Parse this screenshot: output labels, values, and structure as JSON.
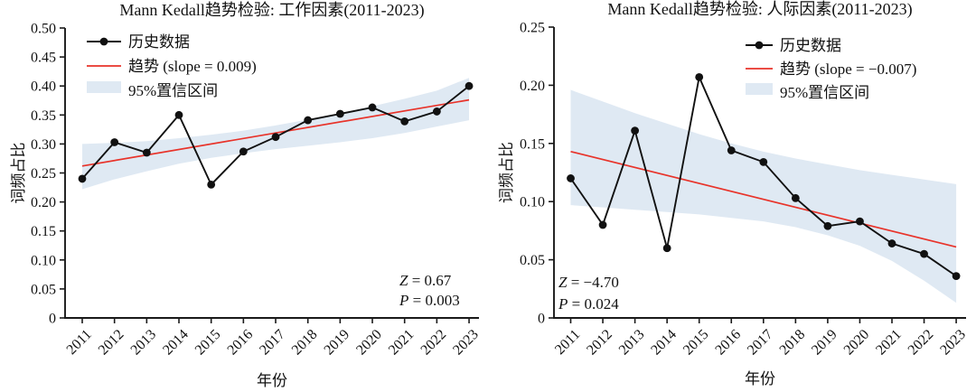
{
  "figure": {
    "background": "#ffffff",
    "axis_color": "#1a1a1a",
    "data_line_color": "#111111",
    "trend_line_color": "#e8332a",
    "band_color": "#dfe9f3"
  },
  "chart_data": [
    {
      "type": "line",
      "title": "Mann Kedall趋势检验: 工作因素(2011-2023)",
      "xlabel": "年份",
      "ylabel": "词频占比",
      "x": [
        2011,
        2012,
        2013,
        2014,
        2015,
        2016,
        2017,
        2018,
        2019,
        2020,
        2021,
        2022,
        2023
      ],
      "x_tick_labels": [
        "2011",
        "2012",
        "2013",
        "2014",
        "2015",
        "2016",
        "2017",
        "2018",
        "2019",
        "2020",
        "2021",
        "2022",
        "2023"
      ],
      "ylim": [
        0,
        0.5
      ],
      "y_ticks": [
        0,
        0.05,
        0.1,
        0.15,
        0.2,
        0.25,
        0.3,
        0.35,
        0.4,
        0.45,
        0.5
      ],
      "y_tick_labels": [
        "0",
        "0.05",
        "0.10",
        "0.15",
        "0.20",
        "0.25",
        "0.30",
        "0.35",
        "0.40",
        "0.45",
        "0.50"
      ],
      "grid": false,
      "legend_position": "top-left",
      "series": [
        {
          "name": "历史数据",
          "role": "data",
          "color": "#111111",
          "values": [
            0.24,
            0.303,
            0.285,
            0.35,
            0.23,
            0.287,
            0.312,
            0.341,
            0.352,
            0.363,
            0.339,
            0.356,
            0.4
          ]
        },
        {
          "name": "趋势 (slope = 0.009)",
          "role": "trend",
          "color": "#e8332a",
          "endpoints": [
            0.262,
            0.376
          ]
        }
      ],
      "band": {
        "name": "95%置信区间",
        "color": "#dfe9f3",
        "lower": [
          0.222,
          0.239,
          0.253,
          0.266,
          0.276,
          0.284,
          0.291,
          0.297,
          0.303,
          0.31,
          0.319,
          0.33,
          0.341
        ],
        "upper": [
          0.3,
          0.302,
          0.305,
          0.31,
          0.316,
          0.323,
          0.332,
          0.342,
          0.353,
          0.365,
          0.378,
          0.392,
          0.414
        ]
      },
      "annotation": {
        "lines": [
          "Z = 0.67",
          "P = 0.003"
        ],
        "position": "bottom-right"
      }
    },
    {
      "type": "line",
      "title": "Mann Kedall趋势检验: 人际因素(2011-2023)",
      "xlabel": "年份",
      "ylabel": "词频占比",
      "x": [
        2011,
        2012,
        2013,
        2014,
        2015,
        2016,
        2017,
        2018,
        2019,
        2020,
        2021,
        2022,
        2023
      ],
      "x_tick_labels": [
        "2011",
        "2012",
        "2013",
        "2014",
        "2015",
        "2016",
        "2017",
        "2018",
        "2019",
        "2020",
        "2021",
        "2022",
        "2023"
      ],
      "ylim": [
        0,
        0.25
      ],
      "y_ticks": [
        0,
        0.05,
        0.1,
        0.15,
        0.2,
        0.25
      ],
      "y_tick_labels": [
        "0",
        "0.05",
        "0.10",
        "0.15",
        "0.20",
        "0.25"
      ],
      "grid": false,
      "legend_position": "top-right",
      "series": [
        {
          "name": "历史数据",
          "role": "data",
          "color": "#111111",
          "values": [
            0.12,
            0.08,
            0.161,
            0.06,
            0.207,
            0.144,
            0.134,
            0.103,
            0.079,
            0.083,
            0.064,
            0.055,
            0.036
          ]
        },
        {
          "name": "趋势 (slope = −0.007)",
          "role": "trend",
          "color": "#e8332a",
          "endpoints": [
            0.143,
            0.061
          ]
        }
      ],
      "band": {
        "name": "95%置信区间",
        "color": "#dfe9f3",
        "lower": [
          0.097,
          0.095,
          0.093,
          0.091,
          0.089,
          0.086,
          0.083,
          0.078,
          0.071,
          0.062,
          0.049,
          0.032,
          0.013
        ],
        "upper": [
          0.196,
          0.186,
          0.176,
          0.167,
          0.158,
          0.15,
          0.143,
          0.137,
          0.132,
          0.127,
          0.123,
          0.119,
          0.115
        ]
      },
      "annotation": {
        "lines": [
          "Z = −4.70",
          "P = 0.024"
        ],
        "position": "bottom-left"
      }
    }
  ]
}
